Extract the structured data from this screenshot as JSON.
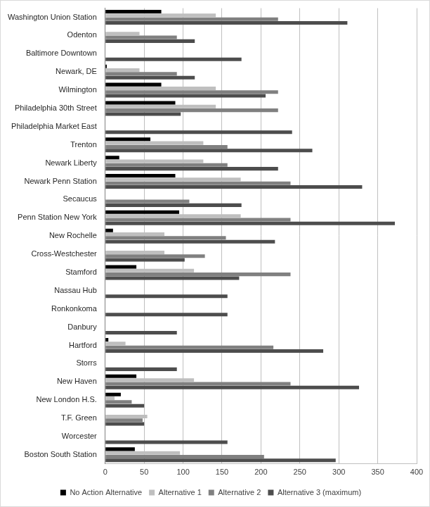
{
  "chart_data": {
    "type": "bar",
    "orientation": "horizontal",
    "grid": true,
    "legend": "bottom",
    "categories": [
      "Washington Union Station",
      "Odenton",
      "Baltimore Downtown",
      "Newark, DE",
      "Wilmington",
      "Philadelphia 30th Street",
      "Philadelphia Market East",
      "Trenton",
      "Newark Liberty",
      "Newark Penn Station",
      "Secaucus",
      "Penn Station New York",
      "New Rochelle",
      "Cross-Westchester",
      "Stamford",
      "Nassau Hub",
      "Ronkonkoma",
      "Danbury",
      "Hartford",
      "Storrs",
      "New Haven",
      "New London H.S.",
      "T.F. Green",
      "Worcester",
      "Boston South Station"
    ],
    "series": [
      {
        "name": "No Action Alternative",
        "color": "#000000",
        "values": [
          72,
          0,
          0,
          2,
          72,
          90,
          0,
          58,
          18,
          90,
          0,
          95,
          10,
          0,
          40,
          0,
          0,
          0,
          4,
          0,
          40,
          20,
          0,
          0,
          38
        ]
      },
      {
        "name": "Alternative 1",
        "color": "#bfbfbf",
        "values": [
          142,
          44,
          0,
          44,
          142,
          142,
          0,
          126,
          126,
          174,
          0,
          174,
          76,
          76,
          114,
          0,
          0,
          0,
          26,
          0,
          114,
          12,
          54,
          0,
          96
        ]
      },
      {
        "name": "Alternative 2",
        "color": "#808080",
        "values": [
          222,
          92,
          0,
          92,
          222,
          222,
          0,
          157,
          157,
          238,
          108,
          238,
          155,
          128,
          238,
          0,
          0,
          0,
          216,
          0,
          238,
          34,
          48,
          0,
          204
        ]
      },
      {
        "name": "Alternative 3 (maximum)",
        "color": "#4d4d4d",
        "values": [
          311,
          115,
          175,
          115,
          206,
          97,
          240,
          266,
          222,
          330,
          175,
          372,
          218,
          102,
          172,
          157,
          157,
          92,
          280,
          92,
          326,
          50,
          50,
          157,
          296
        ]
      }
    ],
    "xlim": [
      0,
      400
    ],
    "xticks": [
      0,
      50,
      100,
      150,
      200,
      250,
      300,
      350,
      400
    ]
  }
}
